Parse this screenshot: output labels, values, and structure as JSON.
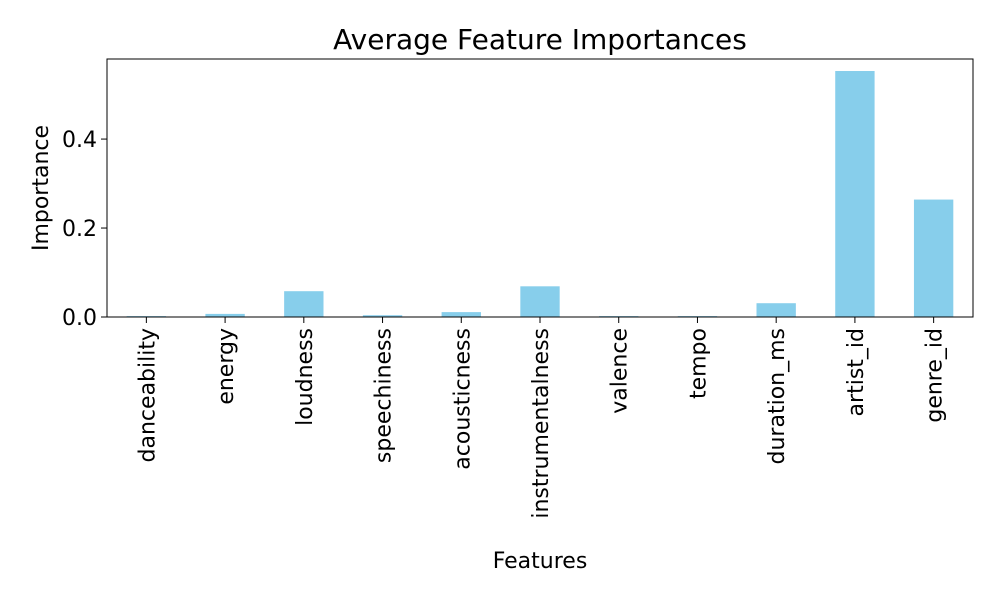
{
  "chart_data": {
    "type": "bar",
    "title": "Average Feature Importances",
    "xlabel": "Features",
    "ylabel": "Importance",
    "categories": [
      "danceability",
      "energy",
      "loudness",
      "speechiness",
      "acousticness",
      "instrumentalness",
      "valence",
      "tempo",
      "duration_ms",
      "artist_id",
      "genre_id"
    ],
    "values": [
      0.002,
      0.007,
      0.058,
      0.004,
      0.011,
      0.069,
      0.002,
      0.002,
      0.031,
      0.553,
      0.264
    ],
    "ylim": [
      0,
      0.58
    ],
    "yticks": [
      0.0,
      0.2,
      0.4
    ],
    "ytick_labels": [
      "0.0",
      "0.2",
      "0.4"
    ],
    "grid": false,
    "bar_color": "#87CEEB"
  }
}
